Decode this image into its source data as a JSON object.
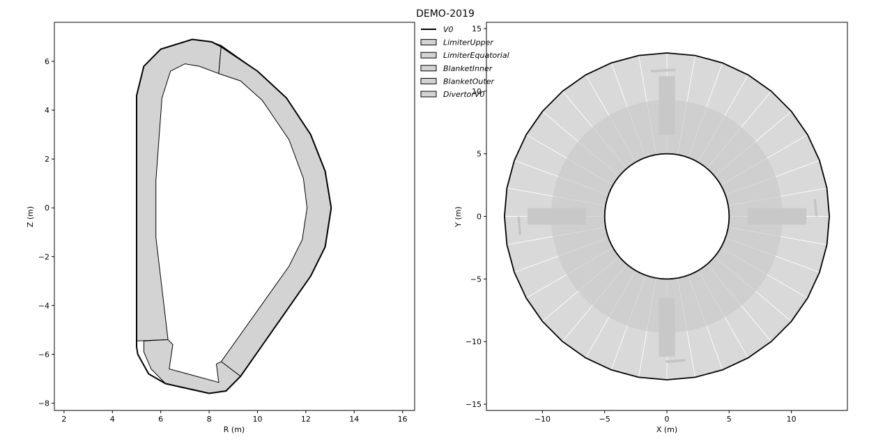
{
  "chart_data": [
    {
      "type": "scatter",
      "figure_title": "DEMO-2019",
      "xlabel": "R (m)",
      "ylabel": "Z (m)",
      "xlim": [
        1.6,
        16.5
      ],
      "ylim": [
        -8.3,
        7.6
      ],
      "xticks": [
        2,
        4,
        6,
        8,
        10,
        12,
        14,
        16
      ],
      "yticks": [
        -8,
        -6,
        -4,
        -2,
        0,
        2,
        4,
        6
      ],
      "grid": false,
      "series": [
        {
          "name": "V0",
          "kind": "line",
          "color": "#000000",
          "points": [
            [
              5.0,
              -5.7
            ],
            [
              5.0,
              4.6
            ],
            [
              5.3,
              5.8
            ],
            [
              6.0,
              6.5
            ],
            [
              7.3,
              6.9
            ],
            [
              8.1,
              6.8
            ],
            [
              8.5,
              6.6
            ],
            [
              10.0,
              5.6
            ],
            [
              11.2,
              4.5
            ],
            [
              12.2,
              3.0
            ],
            [
              12.8,
              1.5
            ],
            [
              13.05,
              0.0
            ],
            [
              12.8,
              -1.6
            ],
            [
              12.2,
              -2.8
            ],
            [
              9.3,
              -6.9
            ],
            [
              8.7,
              -7.5
            ],
            [
              8.0,
              -7.6
            ],
            [
              6.2,
              -7.2
            ],
            [
              5.5,
              -6.8
            ],
            [
              5.05,
              -6.0
            ],
            [
              5.0,
              -5.7
            ]
          ]
        },
        {
          "name": "LimiterUpper",
          "kind": "patch",
          "color": "#d3d3d3",
          "points": []
        },
        {
          "name": "LimiterEquatorial",
          "kind": "patch",
          "color": "#d3d3d3",
          "points": []
        },
        {
          "name": "BlanketInner",
          "kind": "patch",
          "color": "#d3d3d3",
          "points": [
            [
              5.0,
              -5.45
            ],
            [
              5.0,
              4.6
            ],
            [
              5.3,
              5.8
            ],
            [
              6.0,
              6.5
            ],
            [
              7.3,
              6.9
            ],
            [
              8.1,
              6.8
            ],
            [
              8.5,
              6.65
            ],
            [
              8.4,
              5.5
            ],
            [
              7.6,
              5.8
            ],
            [
              7.0,
              5.9
            ],
            [
              6.4,
              5.6
            ],
            [
              6.05,
              4.5
            ],
            [
              5.8,
              1.1
            ],
            [
              5.8,
              -1.2
            ],
            [
              6.3,
              -5.4
            ]
          ]
        },
        {
          "name": "BlanketOuter",
          "kind": "patch",
          "color": "#d3d3d3",
          "points": [
            [
              8.5,
              6.65
            ],
            [
              10.0,
              5.6
            ],
            [
              11.2,
              4.5
            ],
            [
              12.2,
              3.0
            ],
            [
              12.8,
              1.5
            ],
            [
              13.05,
              0.0
            ],
            [
              12.8,
              -1.6
            ],
            [
              12.2,
              -2.8
            ],
            [
              9.3,
              -6.9
            ],
            [
              8.5,
              -6.3
            ],
            [
              11.3,
              -2.4
            ],
            [
              11.85,
              -1.3
            ],
            [
              12.05,
              0.0
            ],
            [
              11.9,
              1.2
            ],
            [
              11.3,
              2.8
            ],
            [
              10.2,
              4.4
            ],
            [
              9.3,
              5.2
            ],
            [
              8.4,
              5.5
            ]
          ]
        },
        {
          "name": "DivertorV0",
          "kind": "patch",
          "color": "#d3d3d3",
          "points": [
            [
              5.3,
              -5.45
            ],
            [
              6.3,
              -5.4
            ],
            [
              6.5,
              -5.6
            ],
            [
              6.35,
              -6.6
            ],
            [
              8.4,
              -7.15
            ],
            [
              8.3,
              -6.4
            ],
            [
              8.5,
              -6.3
            ],
            [
              9.3,
              -6.9
            ],
            [
              8.7,
              -7.5
            ],
            [
              8.0,
              -7.6
            ],
            [
              6.2,
              -7.2
            ],
            [
              5.6,
              -6.6
            ],
            [
              5.3,
              -5.9
            ]
          ]
        }
      ]
    },
    {
      "type": "scatter",
      "xlabel": "X (m)",
      "ylabel": "Y (m)",
      "xlim": [
        -14.5,
        14.5
      ],
      "ylim": [
        -15.5,
        15.5
      ],
      "xticks": [
        -10,
        -5,
        0,
        5,
        10
      ],
      "yticks": [
        -15,
        -10,
        -5,
        0,
        5,
        10,
        15
      ],
      "grid": false,
      "inner_radius": 5.0,
      "outer_radius": 13.05,
      "sectors": 36
    }
  ],
  "legend": {
    "placement": "outside upper-right of left axes",
    "entries": [
      {
        "label": "V0",
        "kind": "line"
      },
      {
        "label": "LimiterUpper",
        "kind": "patch"
      },
      {
        "label": "LimiterEquatorial",
        "kind": "patch"
      },
      {
        "label": "BlanketInner",
        "kind": "patch"
      },
      {
        "label": "BlanketOuter",
        "kind": "patch"
      },
      {
        "label": "DivertorV0",
        "kind": "patch"
      }
    ]
  }
}
